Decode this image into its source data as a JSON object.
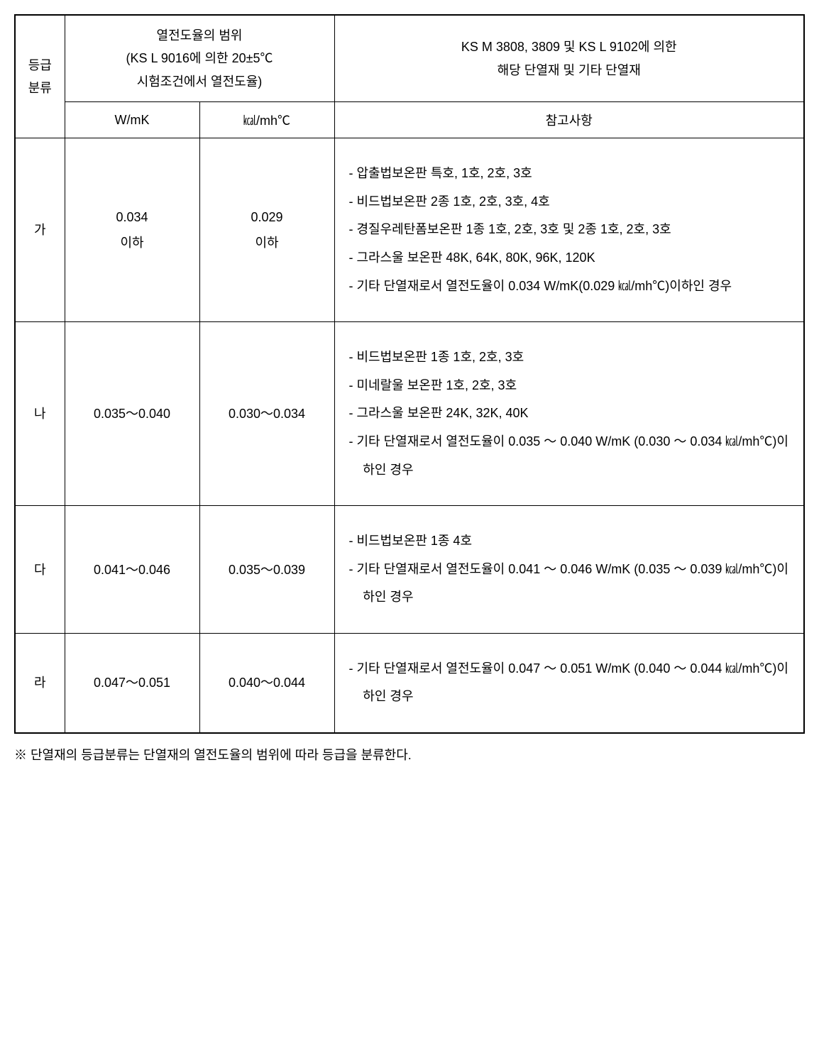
{
  "table": {
    "headers": {
      "grade_label": "등급\n분류",
      "range_title": "열전도율의 범위\n(KS L 9016에 의한 20±5℃\n시험조건에서 열전도율)",
      "materials_title": "KS M 3808, 3809 및 KS L 9102에 의한\n해당 단열재 및 기타 단열재",
      "wmk_label": "W/mK",
      "kcal_label": "㎉/mh℃",
      "ref_label": "참고사항"
    },
    "rows": [
      {
        "grade": "가",
        "wmk": "0.034\n이하",
        "kcal": "0.029\n이하",
        "ref_lines": [
          "- 압출법보온판 특호, 1호, 2호, 3호",
          "- 비드법보온판 2종 1호, 2호, 3호, 4호",
          "- 경질우레탄폼보온판 1종 1호, 2호, 3호 및 2종 1호, 2호, 3호",
          "- 그라스울 보온판 48K, 64K, 80K, 96K, 120K",
          "- 기타 단열재로서 열전도율이 0.034 W/mK(0.029 ㎉/mh℃)이하인 경우"
        ]
      },
      {
        "grade": "나",
        "wmk": "0.035～0.040",
        "kcal": "0.030～0.034",
        "ref_lines": [
          "- 비드법보온판 1종 1호, 2호, 3호",
          "- 미네랄울 보온판 1호, 2호, 3호",
          "- 그라스울 보온판 24K, 32K, 40K",
          "- 기타 단열재로서 열전도율이 0.035 ～ 0.040 W/mK (0.030 ～ 0.034 ㎉/mh℃)이하인 경우"
        ]
      },
      {
        "grade": "다",
        "wmk": "0.041～0.046",
        "kcal": "0.035～0.039",
        "ref_lines": [
          "- 비드법보온판 1종 4호",
          "- 기타 단열재로서 열전도율이 0.041 ～ 0.046 W/mK (0.035 ～ 0.039 ㎉/mh℃)이하인 경우"
        ]
      },
      {
        "grade": "라",
        "wmk": "0.047～0.051",
        "kcal": "0.040～0.044",
        "ref_lines": [
          "- 기타 단열재로서 열전도율이 0.047 ～ 0.051 W/mK (0.040 ～ 0.044 ㎉/mh℃)이하인 경우"
        ]
      }
    ]
  },
  "footnote": "※ 단열재의 등급분류는 단열재의 열전도율의 범위에 따라 등급을 분류한다."
}
